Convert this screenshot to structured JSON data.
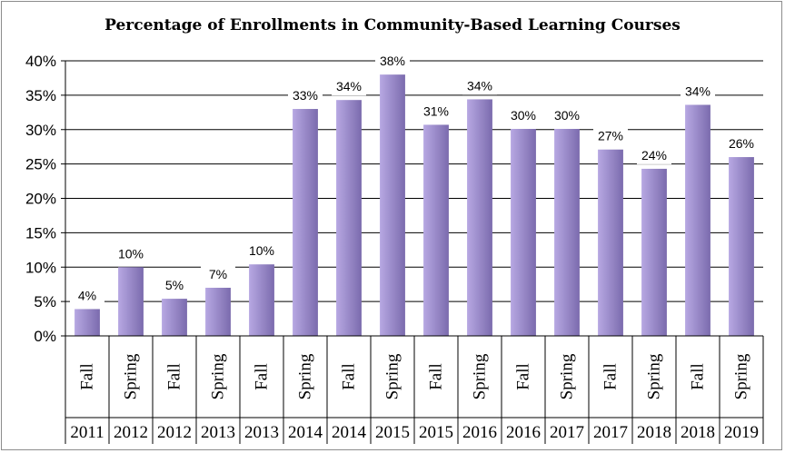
{
  "chart_data": {
    "type": "bar",
    "title": "Percentage of Enrollments in Community-Based Learning Courses",
    "xlabel": "",
    "ylabel": "",
    "ylim": [
      0,
      40
    ],
    "yticks": [
      "0%",
      "5%",
      "10%",
      "15%",
      "20%",
      "25%",
      "30%",
      "35%",
      "40%"
    ],
    "categories": [
      {
        "term": "Fall",
        "year": "2011"
      },
      {
        "term": "Spring",
        "year": "2012"
      },
      {
        "term": "Fall",
        "year": "2012"
      },
      {
        "term": "Spring",
        "year": "2013"
      },
      {
        "term": "Fall",
        "year": "2013"
      },
      {
        "term": "Spring",
        "year": "2014"
      },
      {
        "term": "Fall",
        "year": "2014"
      },
      {
        "term": "Spring",
        "year": "2015"
      },
      {
        "term": "Fall",
        "year": "2015"
      },
      {
        "term": "Spring",
        "year": "2016"
      },
      {
        "term": "Fall",
        "year": "2016"
      },
      {
        "term": "Spring",
        "year": "2017"
      },
      {
        "term": "Fall",
        "year": "2017"
      },
      {
        "term": "Spring",
        "year": "2018"
      },
      {
        "term": "Fall",
        "year": "2018"
      },
      {
        "term": "Spring",
        "year": "2019"
      }
    ],
    "values": [
      3.9,
      10.0,
      5.4,
      7.0,
      10.4,
      33.0,
      34.3,
      38.0,
      30.7,
      34.4,
      30.1,
      30.1,
      27.1,
      24.3,
      33.6,
      26.0
    ],
    "data_labels": [
      "4%",
      "10%",
      "5%",
      "7%",
      "10%",
      "33%",
      "34%",
      "38%",
      "31%",
      "34%",
      "30%",
      "30%",
      "27%",
      "24%",
      "34%",
      "26%"
    ],
    "grid": true,
    "legend": "none",
    "colors": {
      "bar_light": "#b7a8e3",
      "bar_dark": "#7b6bad",
      "grid": "#000000"
    }
  }
}
